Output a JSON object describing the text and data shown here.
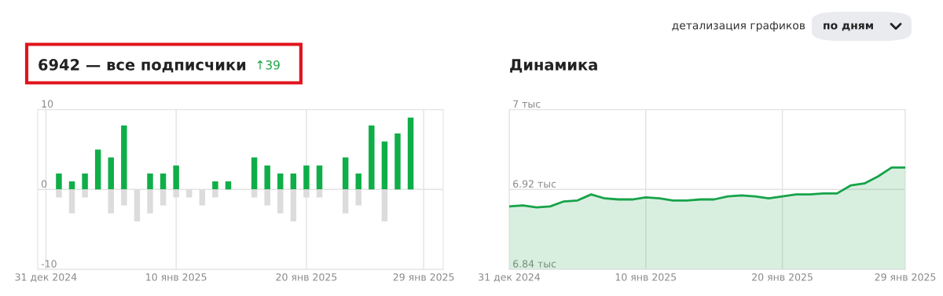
{
  "chart_data": [
    {
      "type": "bar",
      "title": "6942 — все подписчики",
      "annotations": [
        "↑39",
        "детализация графиков",
        "по дням"
      ],
      "x": [
        "2024-12-31",
        "2025-01-01",
        "2025-01-02",
        "2025-01-03",
        "2025-01-04",
        "2025-01-05",
        "2025-01-06",
        "2025-01-07",
        "2025-01-08",
        "2025-01-09",
        "2025-01-10",
        "2025-01-11",
        "2025-01-12",
        "2025-01-13",
        "2025-01-14",
        "2025-01-15",
        "2025-01-16",
        "2025-01-17",
        "2025-01-18",
        "2025-01-19",
        "2025-01-20",
        "2025-01-21",
        "2025-01-22",
        "2025-01-23",
        "2025-01-24",
        "2025-01-25",
        "2025-01-26",
        "2025-01-27",
        "2025-01-28",
        "2025-01-29"
      ],
      "series": [
        {
          "color": "#0fae48",
          "values": [
            0,
            2,
            1,
            2,
            5,
            4,
            8,
            0,
            2,
            2,
            3,
            0,
            0,
            1,
            1,
            0,
            4,
            3,
            2,
            2,
            3,
            3,
            0,
            4,
            2,
            8,
            6,
            7,
            9,
            0
          ]
        },
        {
          "color": "#dcdcdc",
          "values": [
            0,
            -1,
            -3,
            -1,
            0,
            -3,
            -2,
            -4,
            -3,
            -2,
            -1,
            -1,
            -2,
            -1,
            0,
            0,
            -1,
            -2,
            -3,
            -4,
            -1,
            -1,
            0,
            -3,
            -2,
            0,
            -4,
            0,
            0,
            0
          ]
        }
      ],
      "xlim": [
        "2024-12-30T09:00",
        "2025-01-30T12:00"
      ],
      "xticks": [
        {
          "value": "2024-12-31",
          "label": "31 дек 2024"
        },
        {
          "value": "2025-01-10",
          "label": "10 янв 2025"
        },
        {
          "value": "2025-01-20",
          "label": "20 янв 2025"
        },
        {
          "value": "2025-01-29",
          "label": "29 янв 2025"
        }
      ],
      "ylim": [
        -10,
        10
      ],
      "yticks": [
        {
          "value": -10,
          "label": "-10"
        },
        0,
        10
      ],
      "grid": true,
      "stacked": true
    },
    {
      "type": "area",
      "title": "Динамика",
      "x": [
        "2024-12-31",
        "2025-01-01",
        "2025-01-02",
        "2025-01-03",
        "2025-01-04",
        "2025-01-05",
        "2025-01-06",
        "2025-01-07",
        "2025-01-08",
        "2025-01-09",
        "2025-01-10",
        "2025-01-11",
        "2025-01-12",
        "2025-01-13",
        "2025-01-14",
        "2025-01-15",
        "2025-01-16",
        "2025-01-17",
        "2025-01-18",
        "2025-01-19",
        "2025-01-20",
        "2025-01-21",
        "2025-01-22",
        "2025-01-23",
        "2025-01-24",
        "2025-01-25",
        "2025-01-26",
        "2025-01-27",
        "2025-01-28",
        "2025-01-29"
      ],
      "series": [
        {
          "color": "#17a34a",
          "values": [
            6.903,
            6.904,
            6.902,
            6.903,
            6.908,
            6.909,
            6.915,
            6.911,
            6.91,
            6.91,
            6.912,
            6.911,
            6.909,
            6.909,
            6.91,
            6.91,
            6.913,
            6.914,
            6.913,
            6.911,
            6.913,
            6.915,
            6.915,
            6.916,
            6.916,
            6.924,
            6.926,
            6.933,
            6.942,
            6.942
          ]
        }
      ],
      "xlim": [
        "2024-12-31",
        "2025-01-29"
      ],
      "xticks": [
        {
          "value": "2024-12-31",
          "label": "31 дек 2024"
        },
        {
          "value": "2025-01-10",
          "label": "10 янв 2025"
        },
        {
          "value": "2025-01-20",
          "label": "20 янв 2025"
        },
        {
          "value": "2025-01-29",
          "label": "29 янв 2025"
        }
      ],
      "ylim": [
        6.84,
        7
      ],
      "yticks": [
        {
          "value": 6.84,
          "label": "6.84 тыс"
        },
        {
          "value": 6.92,
          "label": "6.92 тыс"
        },
        {
          "value": 7,
          "label": "7 тыс"
        }
      ],
      "grid": true
    }
  ]
}
